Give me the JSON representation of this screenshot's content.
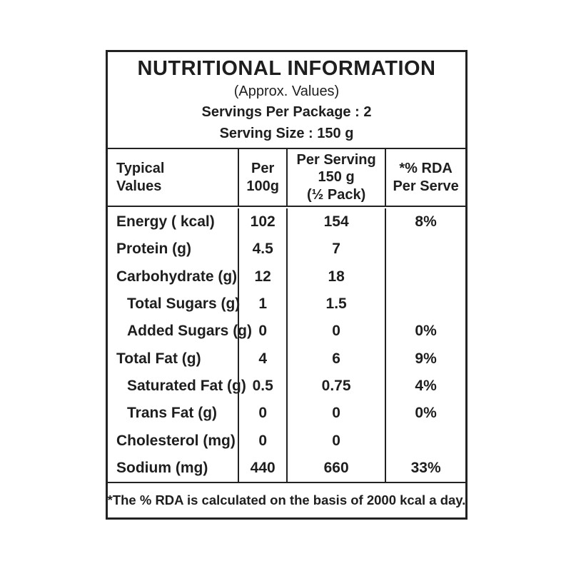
{
  "header": {
    "title": "NUTRITIONAL INFORMATION",
    "approx_values": "(Approx. Values)",
    "servings_per_package": "Servings Per Package : 2",
    "serving_size": "Serving Size : 150 g"
  },
  "columns": {
    "typical_values": "Typical\nValues",
    "per_100g": "Per\n100g",
    "per_serving": "Per Serving\n150 g\n(½ Pack)",
    "rda_per_serve": "*% RDA\nPer Serve"
  },
  "rows": [
    {
      "label": "Energy ( kcal)",
      "per_100g": "102",
      "per_serving": "154",
      "rda": "8%"
    },
    {
      "label": "Protein (g)",
      "per_100g": "4.5",
      "per_serving": "7",
      "rda": ""
    },
    {
      "label": "Carbohydrate (g)",
      "per_100g": "12",
      "per_serving": "18",
      "rda": ""
    },
    {
      "label": "Total Sugars (g)",
      "per_100g": "1",
      "per_serving": "1.5",
      "rda": ""
    },
    {
      "label": "Added Sugars (g)",
      "per_100g": "0",
      "per_serving": "0",
      "rda": "0%"
    },
    {
      "label": "Total Fat (g)",
      "per_100g": "4",
      "per_serving": "6",
      "rda": "9%"
    },
    {
      "label": "Saturated Fat (g)",
      "per_100g": "0.5",
      "per_serving": "0.75",
      "rda": "4%"
    },
    {
      "label": "Trans Fat (g)",
      "per_100g": "0",
      "per_serving": "0",
      "rda": "0%"
    },
    {
      "label": "Cholesterol (mg)",
      "per_100g": "0",
      "per_serving": "0",
      "rda": ""
    },
    {
      "label": "Sodium (mg)",
      "per_100g": "440",
      "per_serving": "660",
      "rda": "33%"
    }
  ],
  "footnote": "*The % RDA is calculated on the basis of 2000 kcal a day.",
  "colors": {
    "text": "#1e1e1e",
    "border": "#222222",
    "background": "#ffffff"
  }
}
